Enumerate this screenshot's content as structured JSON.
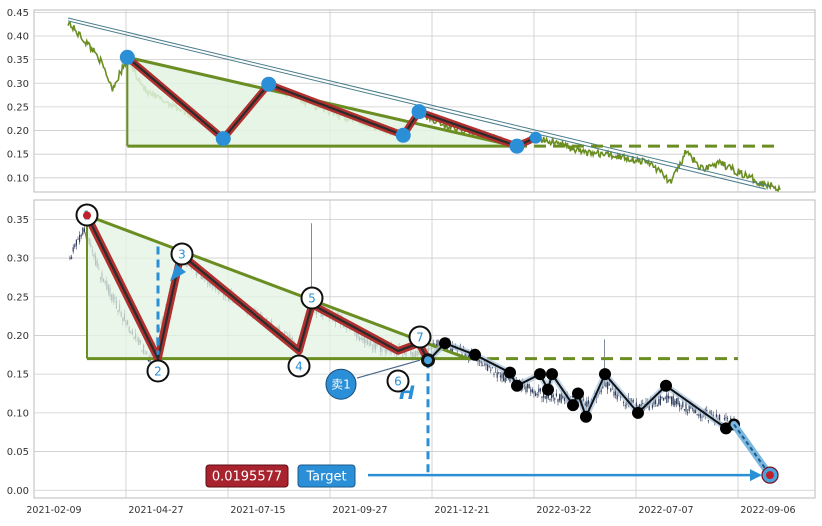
{
  "colors": {
    "background": "#ffffff",
    "plot_background": "#ffffff",
    "grid": "#cccccc",
    "price_line": "#6b8e23",
    "triangle_line": "#6b8e23",
    "triangle_fill": "#e3f3e3",
    "zigzag_outer": "#b03030",
    "zigzag_inner": "#2b2b2b",
    "pivot_blue": "#2a8fd6",
    "candle": "#2f3e5c",
    "black_markers": "#000000",
    "target_badge_bg": "#a8232e",
    "target_button_bg": "#2a8fd6",
    "arrow_blue": "#2a8fd6",
    "sell_circle": "#2a8fd6"
  },
  "top_panel": {
    "y_ticks": [
      "0.10",
      "0.15",
      "0.20",
      "0.25",
      "0.30",
      "0.35",
      "0.40",
      "0.45"
    ],
    "pivots": [
      {
        "i": 60,
        "y": 0.355
      },
      {
        "i": 157,
        "y": 0.183
      },
      {
        "i": 203,
        "y": 0.298
      },
      {
        "i": 339,
        "y": 0.19
      },
      {
        "i": 355,
        "y": 0.24
      },
      {
        "i": 454,
        "y": 0.167
      },
      {
        "i": 473,
        "y": 0.185
      }
    ]
  },
  "bottom_panel": {
    "y_ticks": [
      "0.00",
      "0.05",
      "0.10",
      "0.15",
      "0.20",
      "0.25",
      "0.30",
      "0.35"
    ],
    "x_ticks": [
      "2021-02-09",
      "2021-04-27",
      "2021-07-15",
      "2021-09-27",
      "2021-12-21",
      "2022-03-22",
      "2022-07-07",
      "2022-09-06"
    ],
    "labels": {
      "wave_points": [
        "1",
        "2",
        "3",
        "4",
        "5",
        "6",
        "7"
      ],
      "sell_label": "卖1",
      "h_label": "H",
      "target_value": "0.0195577",
      "target_button": "Target"
    }
  },
  "chart_data": [
    {
      "type": "line",
      "panel": "top",
      "series": [
        {
          "values_note": "price history"
        }
      ],
      "ylim": [
        0.07,
        0.455
      ],
      "y_ticks": [
        0.1,
        0.15,
        0.2,
        0.25,
        0.3,
        0.35,
        0.4,
        0.45
      ],
      "triangle": {
        "apex": 0.355,
        "base": 0.167,
        "right_end": 0.167
      },
      "trend_line": {
        "start": 0.435,
        "end": 0.075
      },
      "grid": true
    },
    {
      "type": "candlestick",
      "panel": "bottom",
      "ylim": [
        -0.01,
        0.375
      ],
      "y_ticks": [
        0.0,
        0.05,
        0.1,
        0.15,
        0.2,
        0.25,
        0.3,
        0.35
      ],
      "x_ticks": [
        "2021-02-09",
        "2021-04-27",
        "2021-07-15",
        "2021-09-27",
        "2021-12-21",
        "2022-03-22",
        "2022-07-07",
        "2022-09-06"
      ],
      "zigzag": [
        {
          "label": "1",
          "y": 0.355
        },
        {
          "label": "2",
          "y": 0.17
        },
        {
          "label": "3",
          "y": 0.305
        },
        {
          "label": "4",
          "y": 0.18
        },
        {
          "label": "5",
          "y": 0.24
        },
        {
          "label": "6",
          "y": 0.18
        },
        {
          "label": "7",
          "y": 0.19
        }
      ],
      "black_path": [
        0.167,
        0.19,
        0.175,
        0.152,
        0.135,
        0.15,
        0.13,
        0.15,
        0.11,
        0.125,
        0.095,
        0.15,
        0.1,
        0.135,
        0.08,
        0.085
      ],
      "target": 0.0195577,
      "grid": true
    }
  ]
}
